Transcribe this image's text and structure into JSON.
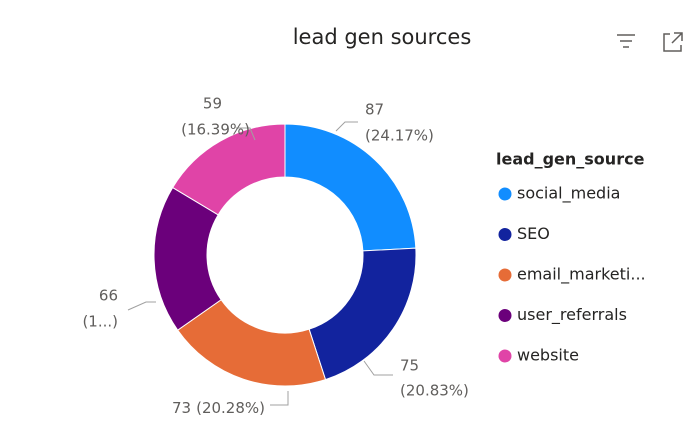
{
  "chart_data": {
    "type": "donut",
    "title": "lead gen sources",
    "legend_title": "lead_gen_source",
    "categories": [
      "social_media",
      "SEO",
      "email_marketi...",
      "user_referrals",
      "website"
    ],
    "values": [
      87,
      75,
      73,
      66,
      59
    ],
    "percent_labels": [
      "(24.17%)",
      "(20.83%)",
      "(20.28%)",
      "(1...)",
      "(16.39%)"
    ],
    "colors": [
      "#118DFF",
      "#12239E",
      "#E66C37",
      "#6B007B",
      "#E044A7"
    ],
    "legend_position": "right"
  }
}
